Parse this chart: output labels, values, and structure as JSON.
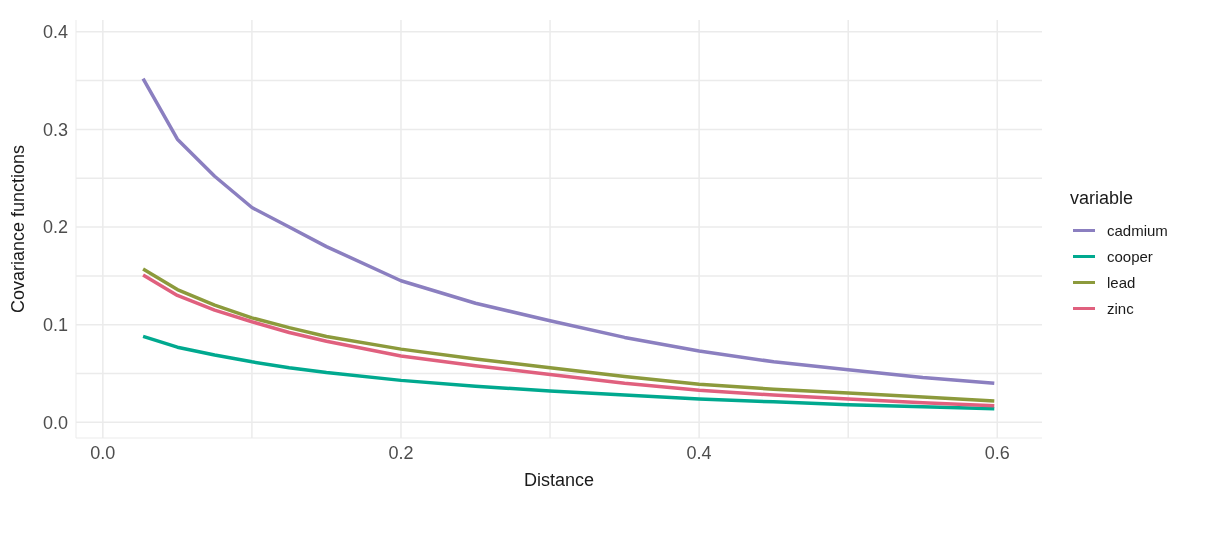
{
  "chart_data": {
    "type": "line",
    "xlabel": "Distance",
    "ylabel": "Covariance functions",
    "legend_title": "variable",
    "legend": "right",
    "grid": true,
    "line_style": "solid",
    "xlim": [
      -0.018,
      0.63
    ],
    "ylim": [
      -0.016,
      0.412
    ],
    "xticks": [
      {
        "value": 0,
        "label": "0.0"
      },
      0.2,
      0.4,
      0.6
    ],
    "yticks": [
      {
        "value": 0,
        "label": "0.0"
      },
      0.1,
      0.2,
      0.3,
      0.4
    ],
    "x": [
      0.027,
      0.05,
      0.075,
      0.1,
      0.125,
      0.15,
      0.2,
      0.25,
      0.3,
      0.35,
      0.4,
      0.45,
      0.5,
      0.55,
      0.598
    ],
    "series": [
      {
        "name": "cadmium",
        "color": "#8b7fc0",
        "values": [
          0.352,
          0.29,
          0.252,
          0.22,
          0.2,
          0.18,
          0.145,
          0.122,
          0.104,
          0.087,
          0.073,
          0.062,
          0.054,
          0.046,
          0.04
        ]
      },
      {
        "name": "cooper",
        "color": "#00a98f",
        "values": [
          0.088,
          0.077,
          0.069,
          0.062,
          0.056,
          0.051,
          0.043,
          0.037,
          0.032,
          0.028,
          0.024,
          0.021,
          0.018,
          0.016,
          0.014
        ]
      },
      {
        "name": "lead",
        "color": "#8c9a3c",
        "values": [
          0.157,
          0.136,
          0.12,
          0.107,
          0.097,
          0.088,
          0.075,
          0.065,
          0.056,
          0.047,
          0.039,
          0.034,
          0.03,
          0.026,
          0.022
        ]
      },
      {
        "name": "zinc",
        "color": "#e0607e",
        "values": [
          0.151,
          0.13,
          0.115,
          0.103,
          0.092,
          0.083,
          0.068,
          0.058,
          0.049,
          0.04,
          0.033,
          0.028,
          0.024,
          0.02,
          0.017
        ]
      }
    ]
  }
}
